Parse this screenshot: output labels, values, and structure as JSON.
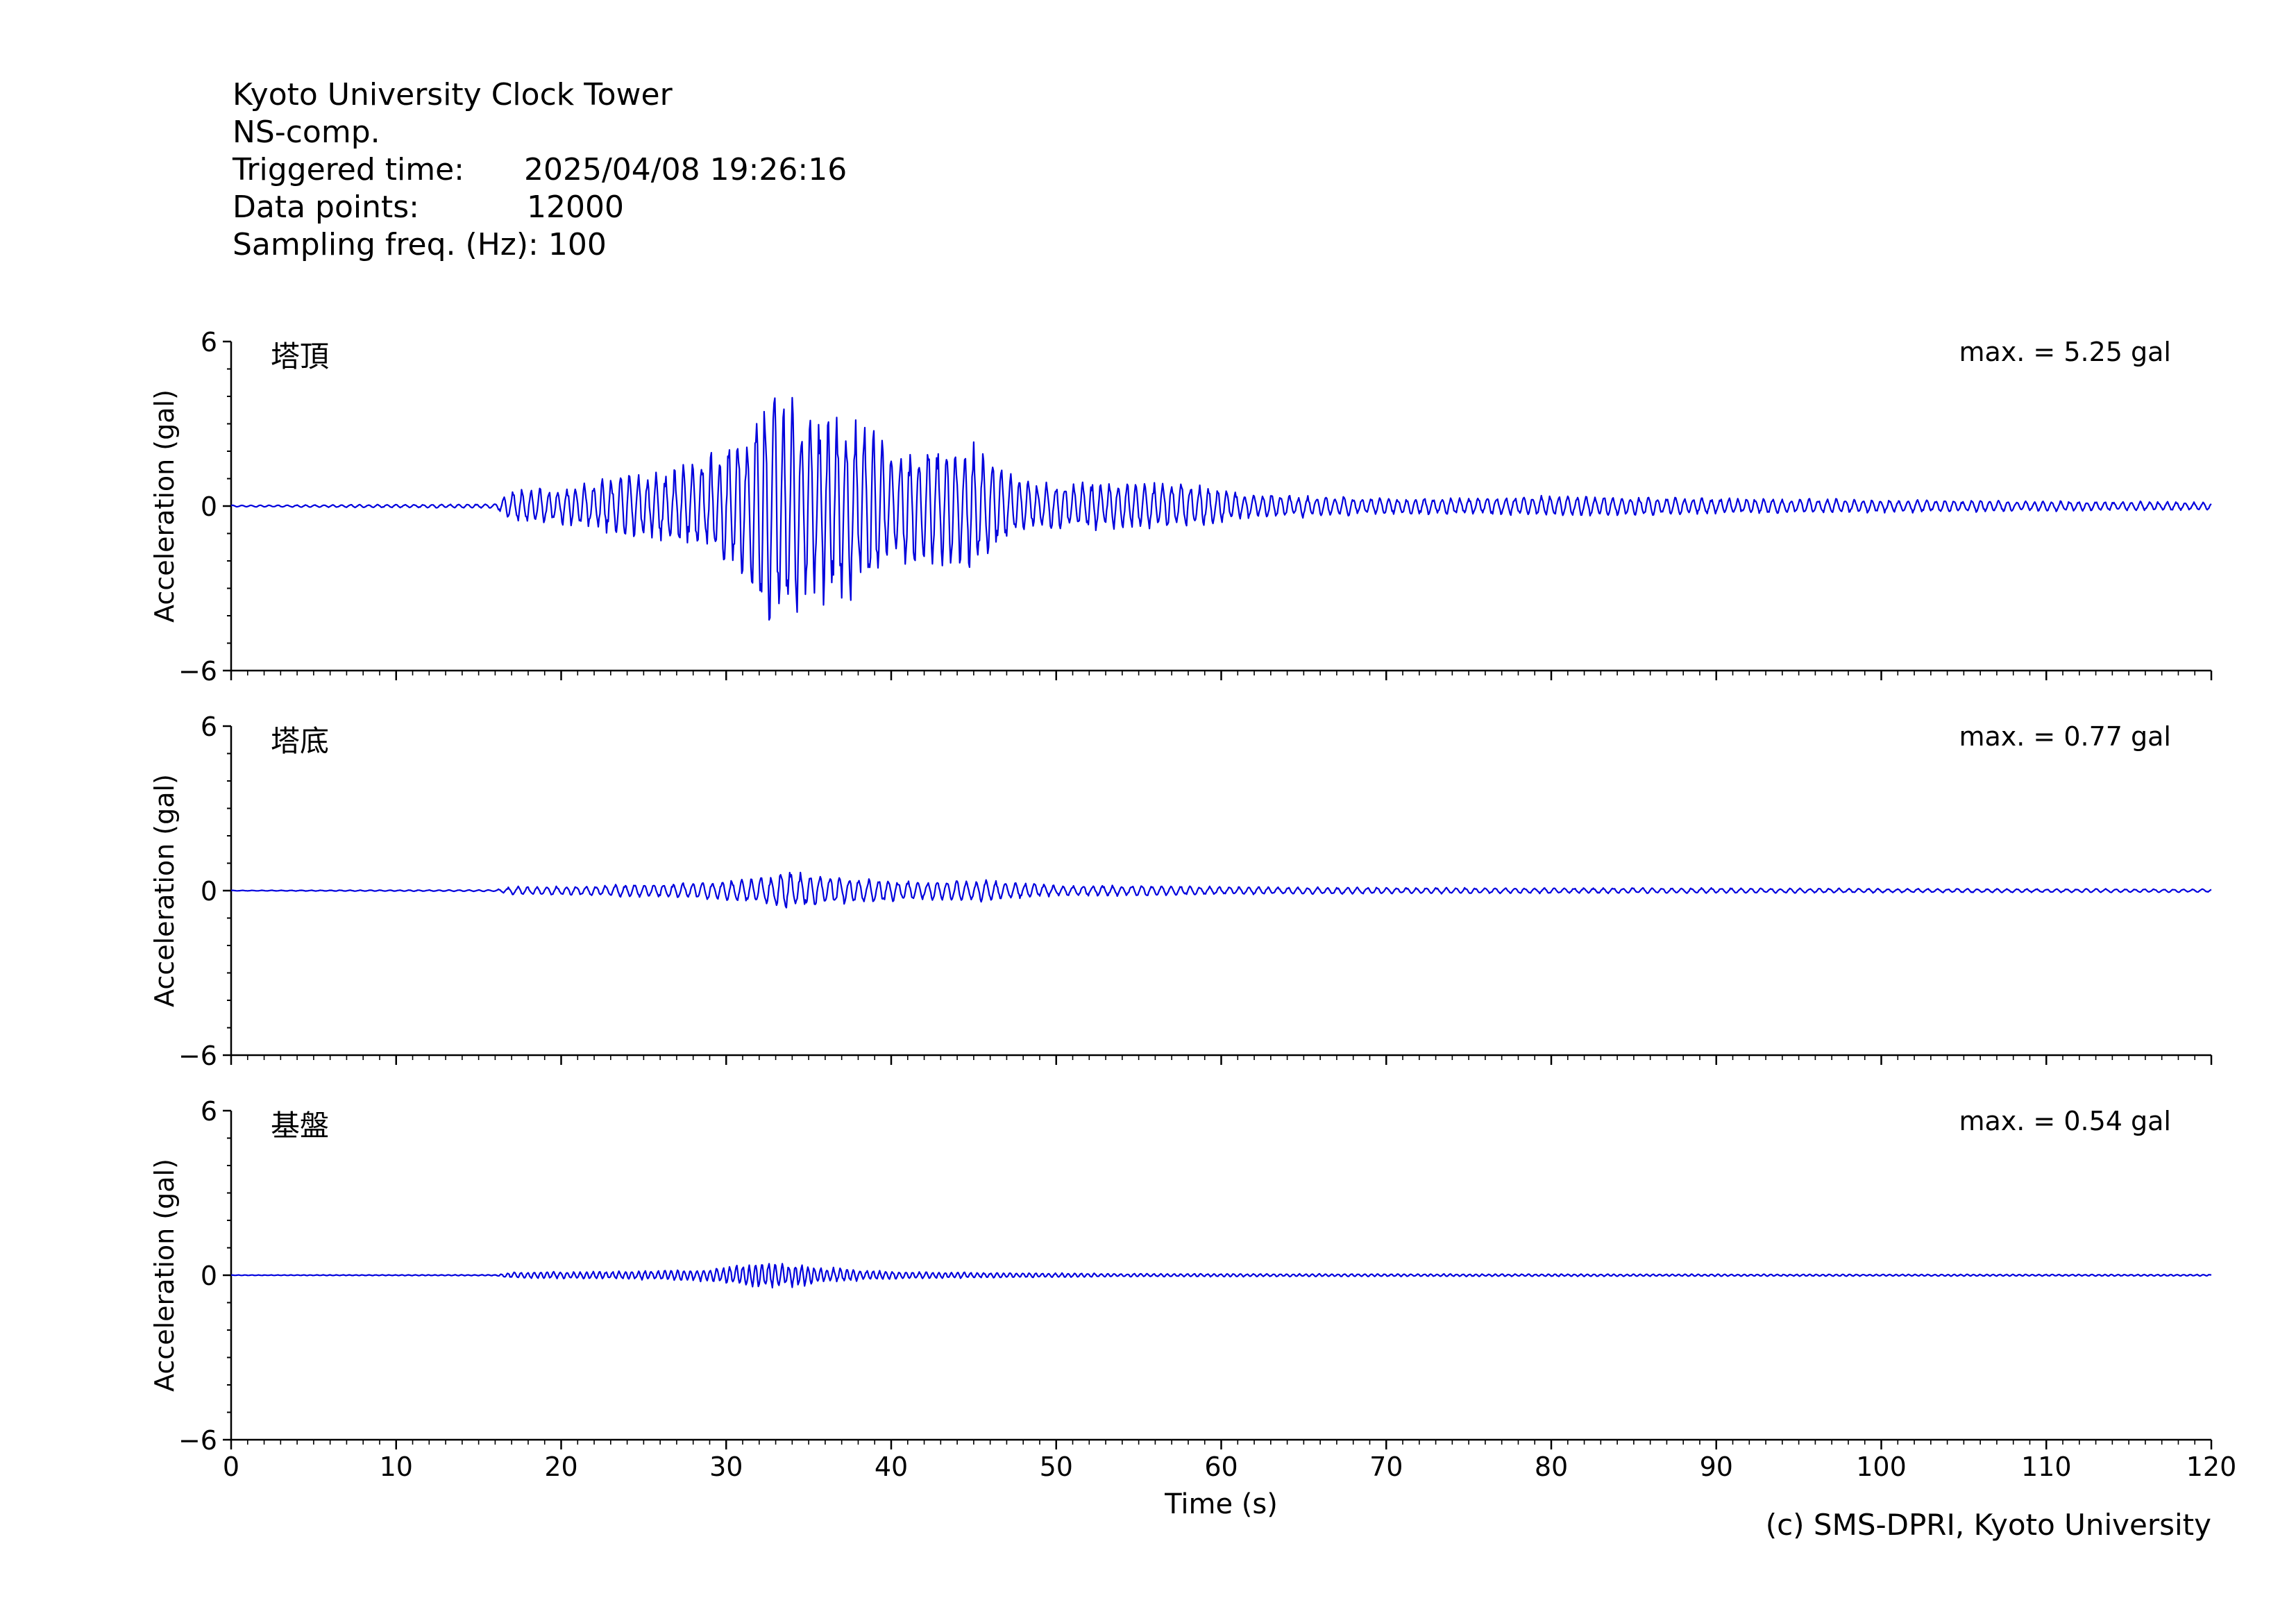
{
  "header": {
    "station": "Kyoto University Clock Tower",
    "component": "NS-comp.",
    "triggered_label": "Triggered time:",
    "triggered_value": "2025/04/08 19:26:16",
    "points_label": "Data points:",
    "points_value": "12000",
    "freq_label": "Sampling freq. (Hz):",
    "freq_value": "100"
  },
  "credit": "(c) SMS-DPRI, Kyoto University",
  "colors": {
    "trace": "#0000dd",
    "axis": "#000000"
  },
  "chart_data": [
    {
      "type": "line",
      "label": "塔頂",
      "max_text": "max. = 5.25 gal",
      "max_value": 5.25,
      "ylabel": "Acceleration (gal)",
      "xlim": [
        0,
        120
      ],
      "ylim": [
        -6,
        6
      ],
      "yticks": [
        6,
        0,
        -6
      ],
      "ytick_labels": [
        "6",
        "0",
        "−6"
      ],
      "envelope": {
        "x": [
          0,
          16,
          17,
          20,
          24,
          27,
          30,
          31.5,
          33,
          35,
          37.5,
          40,
          45,
          47,
          48.5,
          52,
          57,
          59,
          61,
          66,
          70,
          77,
          82,
          90,
          100,
          110,
          120
        ],
        "amplitude": [
          0.03,
          0.08,
          0.6,
          0.7,
          1.2,
          1.4,
          2.2,
          3.4,
          5.25,
          3.4,
          3.6,
          2.2,
          2.3,
          1.4,
          0.9,
          0.9,
          0.9,
          0.8,
          0.5,
          0.4,
          0.3,
          0.35,
          0.4,
          0.3,
          0.25,
          0.2,
          0.15
        ],
        "period_s": 0.55
      }
    },
    {
      "type": "line",
      "label": "塔底",
      "max_text": "max. = 0.77 gal",
      "max_value": 0.77,
      "ylabel": "Acceleration (gal)",
      "xlim": [
        0,
        120
      ],
      "ylim": [
        -6,
        6
      ],
      "yticks": [
        6,
        0,
        -6
      ],
      "ytick_labels": [
        "6",
        "0",
        "−6"
      ],
      "envelope": {
        "x": [
          0,
          16,
          17,
          22,
          28,
          32,
          33.5,
          36,
          38,
          42,
          46,
          50,
          55,
          60,
          70,
          80,
          90,
          100,
          120
        ],
        "amplitude": [
          0.01,
          0.03,
          0.15,
          0.2,
          0.3,
          0.5,
          0.77,
          0.55,
          0.5,
          0.35,
          0.4,
          0.2,
          0.2,
          0.15,
          0.12,
          0.1,
          0.1,
          0.08,
          0.06
        ],
        "period_s": 0.6
      }
    },
    {
      "type": "line",
      "label": "基盤",
      "max_text": "max. = 0.54 gal",
      "max_value": 0.54,
      "ylabel": "Acceleration (gal)",
      "xlabel": "Time (s)",
      "xlim": [
        0,
        120
      ],
      "ylim": [
        -6,
        6
      ],
      "yticks": [
        6,
        0,
        -6
      ],
      "ytick_labels": [
        "6",
        "0",
        "−6"
      ],
      "xticks": [
        0,
        10,
        20,
        30,
        40,
        50,
        60,
        70,
        80,
        90,
        100,
        110,
        120
      ],
      "envelope": {
        "x": [
          0,
          16,
          17,
          24,
          29,
          31,
          32.5,
          34,
          36,
          40,
          46,
          55,
          70,
          90,
          120
        ],
        "amplitude": [
          0.01,
          0.02,
          0.12,
          0.15,
          0.25,
          0.4,
          0.54,
          0.45,
          0.3,
          0.15,
          0.1,
          0.06,
          0.05,
          0.04,
          0.03
        ],
        "period_s": 0.4
      }
    }
  ]
}
